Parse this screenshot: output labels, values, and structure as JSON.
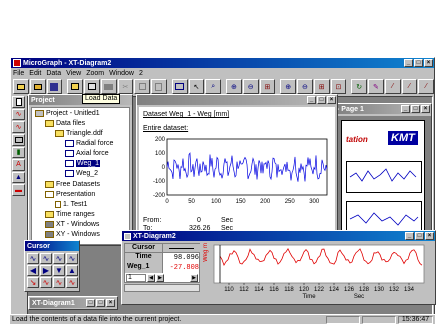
{
  "app": {
    "title": "MicroGraph - XT-Diagram2"
  },
  "menu": [
    "File",
    "Edit",
    "Data",
    "View",
    "Zoom",
    "Window",
    "2"
  ],
  "tooltip": "Load Data",
  "project": {
    "title": "Project",
    "items": [
      "Project - Unitled1",
      "Data files",
      "Triangle.ddf",
      "Radial force",
      "Axial force",
      "Weg_1",
      "Weg_2",
      "Free Datasets",
      "Presentation",
      "1. Test1",
      "Time ranges",
      "XT - Windows",
      "XY - Windows"
    ]
  },
  "dataset": {
    "heading": "Dataset Weg_1 - Weg  [mm]",
    "entire": "Entire dataset:",
    "yticks": [
      "200",
      "100",
      "0",
      "-100",
      "-200"
    ],
    "xticks": [
      "0",
      "50",
      "100",
      "150",
      "200",
      "250",
      "300"
    ],
    "from_label": "From:",
    "from_val": "0",
    "from_unit": "Sec",
    "to_label": "To:",
    "to_val": "326.26",
    "to_unit": "Sec"
  },
  "page": {
    "title": "- Page 1",
    "brand_text": "tation",
    "logo": "KMT"
  },
  "cursor": {
    "title": "Cursor"
  },
  "xt": {
    "title": "XT-Diagram2",
    "col1": "Cursor",
    "row_time": "Time",
    "time_val": "98.096",
    "row_weg": "Weg_1",
    "weg_val": "-27.808",
    "spin": "1",
    "yaxis": "Weg m",
    "xticks": [
      "110",
      "112",
      "114",
      "116",
      "118",
      "120",
      "122",
      "124",
      "126",
      "128",
      "130",
      "132",
      "134"
    ],
    "xlabel": "Time",
    "xunit": "Sec"
  },
  "minimized": {
    "title": "XT-Diagram1"
  },
  "status": {
    "text": "Load the contents of a data file into the current project.",
    "time": "15:36:47"
  },
  "chart_data": [
    {
      "type": "line",
      "title": "",
      "xlabel": "",
      "ylabel": "",
      "x_range": [
        0,
        326
      ],
      "ylim": [
        -200,
        200
      ],
      "description_values": "dense noisy signal mostly within -100..100"
    },
    {
      "type": "line",
      "title": "",
      "xlabel": "Time",
      "ylabel": "Weg m",
      "x_range": [
        108,
        136
      ],
      "cursor_time": 98.096,
      "cursor_value": -27.808
    }
  ],
  "colors": {
    "title_active": "#000080",
    "xt_line": "#e00000",
    "dataset_line": "#0000e0",
    "logo_bg": "#0000a0"
  }
}
